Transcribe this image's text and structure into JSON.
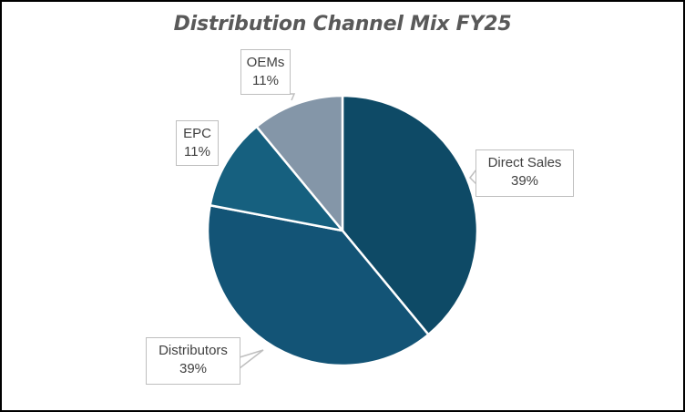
{
  "chart_data": {
    "type": "pie",
    "title": "Distribution Channel Mix FY25",
    "categories": [
      "Direct Sales",
      "Distributors",
      "EPC",
      "OEMs"
    ],
    "values": [
      39,
      39,
      11,
      11
    ],
    "value_format": "percent",
    "colors": [
      "#0e4a66",
      "#135476",
      "#16607f",
      "#8496a8"
    ],
    "start_angle_deg": 0,
    "direction": "clockwise",
    "legend": "none",
    "data_labels": [
      {
        "category": "Direct Sales",
        "text": "Direct Sales",
        "value": "39%"
      },
      {
        "category": "Distributors",
        "text": "Distributors",
        "value": "39%"
      },
      {
        "category": "EPC",
        "text": "EPC",
        "value": "11%"
      },
      {
        "category": "OEMs",
        "text": "OEMs",
        "value": "11%"
      }
    ]
  },
  "title": "Distribution Channel Mix FY25",
  "labels": {
    "direct_sales": {
      "name": "Direct Sales",
      "pct": "39%"
    },
    "distributors": {
      "name": "Distributors",
      "pct": "39%"
    },
    "epc": {
      "name": "EPC",
      "pct": "11%"
    },
    "oems": {
      "name": "OEMs",
      "pct": "11%"
    }
  }
}
